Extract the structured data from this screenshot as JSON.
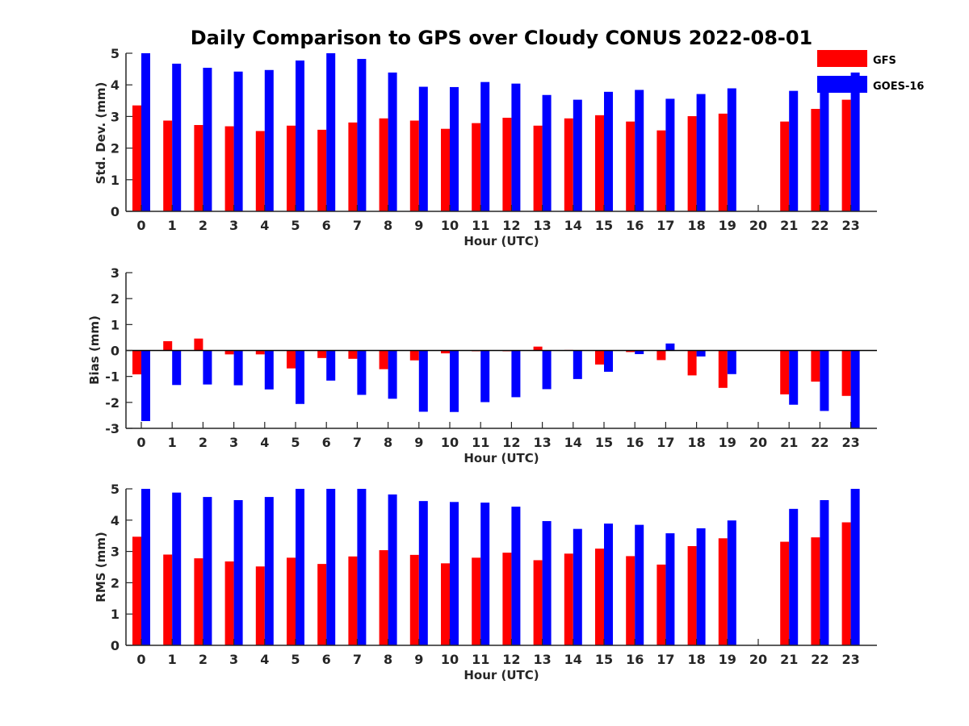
{
  "figure": {
    "title": "Daily Comparison to GPS over Cloudy CONUS 2022-08-01",
    "colors": {
      "GFS": "#ff0000",
      "GOES-16": "#0000ff",
      "axis": "#262626"
    }
  },
  "legend": {
    "placement": "top-right",
    "entries": [
      {
        "name": "GFS",
        "color": "#ff0000"
      },
      {
        "name": "GOES-16",
        "color": "#0000ff"
      }
    ]
  },
  "chart_data": [
    {
      "id": "stddev",
      "type": "bar",
      "title": "Daily Comparison to GPS over Cloudy CONUS 2022-08-01",
      "xlabel": "Hour (UTC)",
      "ylabel": "Std. Dev. (mm)",
      "ylim": [
        0,
        5
      ],
      "yticks": [
        0,
        1,
        2,
        3,
        4,
        5
      ],
      "categories": [
        "0",
        "1",
        "2",
        "3",
        "4",
        "5",
        "6",
        "7",
        "8",
        "9",
        "10",
        "11",
        "12",
        "13",
        "14",
        "15",
        "16",
        "17",
        "18",
        "19",
        "20",
        "21",
        "22",
        "23"
      ],
      "series": [
        {
          "name": "GFS",
          "values": [
            3.35,
            2.87,
            2.73,
            2.69,
            2.54,
            2.71,
            2.58,
            2.81,
            2.94,
            2.87,
            2.61,
            2.79,
            2.96,
            2.71,
            2.94,
            3.04,
            2.84,
            2.56,
            3.01,
            3.09,
            null,
            2.84,
            3.24,
            3.53
          ]
        },
        {
          "name": "GOES-16",
          "values": [
            5.0,
            4.67,
            4.54,
            4.42,
            4.47,
            4.77,
            5.0,
            4.82,
            4.39,
            3.94,
            3.93,
            4.09,
            4.04,
            3.68,
            3.53,
            3.78,
            3.84,
            3.56,
            3.71,
            3.89,
            null,
            3.81,
            4.01,
            4.39
          ]
        }
      ],
      "grid": false,
      "legend": "top-right"
    },
    {
      "id": "bias",
      "type": "bar",
      "xlabel": "Hour (UTC)",
      "ylabel": "Bias (mm)",
      "ylim": [
        -3,
        3
      ],
      "yticks": [
        -3,
        -2,
        -1,
        0,
        1,
        2,
        3
      ],
      "categories": [
        "0",
        "1",
        "2",
        "3",
        "4",
        "5",
        "6",
        "7",
        "8",
        "9",
        "10",
        "11",
        "12",
        "13",
        "14",
        "15",
        "16",
        "17",
        "18",
        "19",
        "20",
        "21",
        "22",
        "23"
      ],
      "series": [
        {
          "name": "GFS",
          "values": [
            -0.92,
            0.36,
            0.46,
            -0.15,
            -0.15,
            -0.69,
            -0.29,
            -0.32,
            -0.72,
            -0.38,
            -0.11,
            -0.03,
            -0.03,
            0.15,
            0.02,
            -0.54,
            -0.06,
            -0.37,
            -0.96,
            -1.44,
            null,
            -1.69,
            -1.2,
            -1.75
          ]
        },
        {
          "name": "GOES-16",
          "values": [
            -2.72,
            -1.33,
            -1.31,
            -1.34,
            -1.5,
            -2.06,
            -1.16,
            -1.71,
            -1.86,
            -2.36,
            -2.37,
            -1.99,
            -1.8,
            -1.49,
            -1.1,
            -0.82,
            -0.14,
            0.27,
            -0.23,
            -0.91,
            null,
            -2.09,
            -2.33,
            -3.0
          ]
        }
      ],
      "grid": false
    },
    {
      "id": "rms",
      "type": "bar",
      "xlabel": "Hour (UTC)",
      "ylabel": "RMS (mm)",
      "ylim": [
        0,
        5
      ],
      "yticks": [
        0,
        1,
        2,
        3,
        4,
        5
      ],
      "categories": [
        "0",
        "1",
        "2",
        "3",
        "4",
        "5",
        "6",
        "7",
        "8",
        "9",
        "10",
        "11",
        "12",
        "13",
        "14",
        "15",
        "16",
        "17",
        "18",
        "19",
        "20",
        "21",
        "22",
        "23"
      ],
      "series": [
        {
          "name": "GFS",
          "values": [
            3.47,
            2.9,
            2.78,
            2.68,
            2.52,
            2.8,
            2.6,
            2.84,
            3.04,
            2.89,
            2.62,
            2.8,
            2.96,
            2.72,
            2.93,
            3.09,
            2.85,
            2.58,
            3.17,
            3.42,
            null,
            3.31,
            3.45,
            3.93
          ]
        },
        {
          "name": "GOES-16",
          "values": [
            5.0,
            4.88,
            4.74,
            4.64,
            4.74,
            5.0,
            5.0,
            5.0,
            4.82,
            4.61,
            4.58,
            4.56,
            4.43,
            3.97,
            3.72,
            3.89,
            3.85,
            3.58,
            3.74,
            3.99,
            null,
            4.36,
            4.64,
            5.0
          ]
        }
      ],
      "grid": false
    }
  ]
}
